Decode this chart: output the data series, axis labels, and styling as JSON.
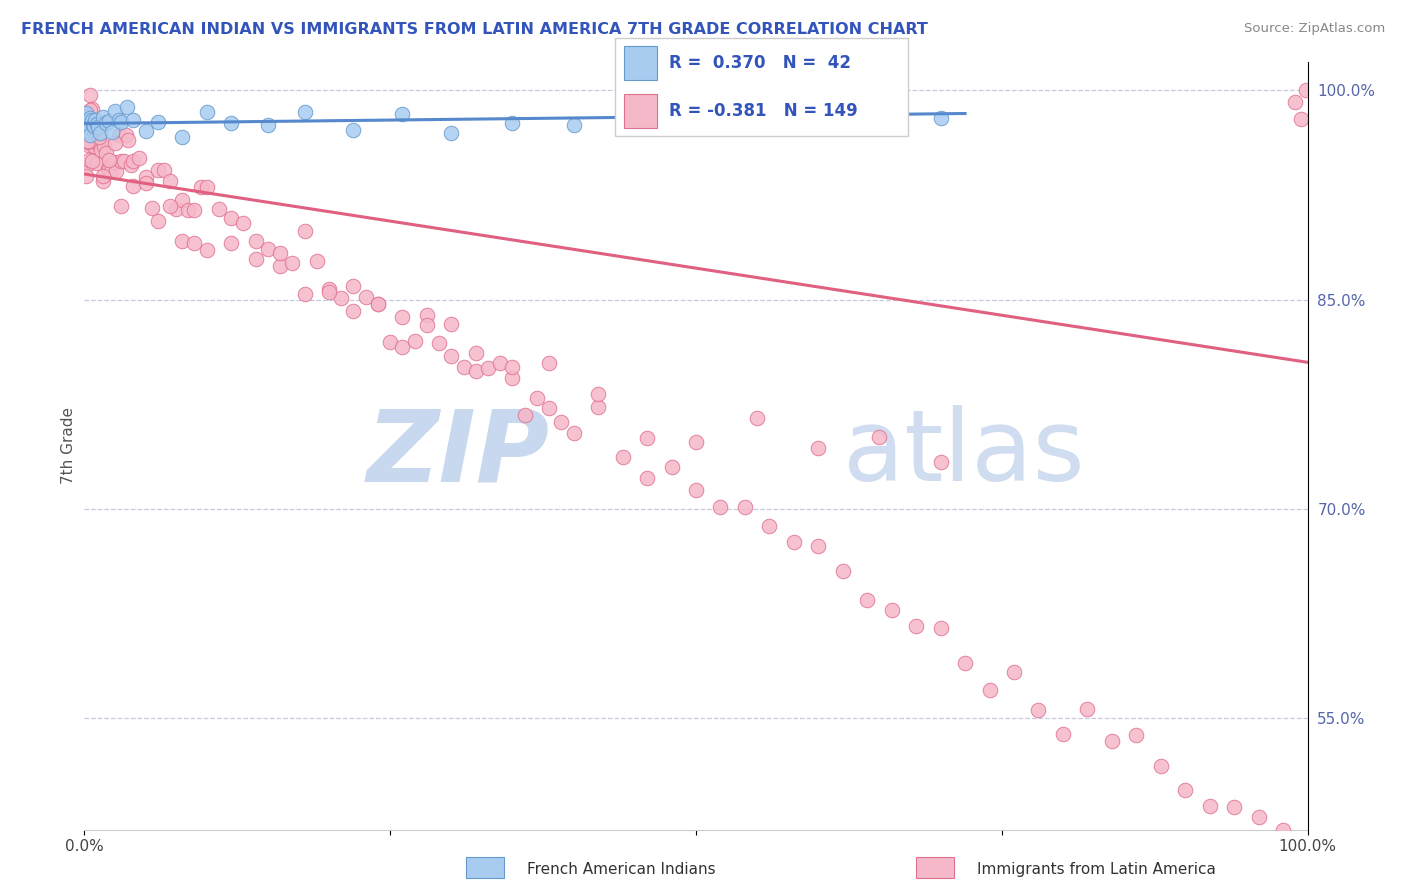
{
  "title": "FRENCH AMERICAN INDIAN VS IMMIGRANTS FROM LATIN AMERICA 7TH GRADE CORRELATION CHART",
  "source": "Source: ZipAtlas.com",
  "ylabel": "7th Grade",
  "right_ytick_values": [
    55.0,
    70.0,
    85.0,
    100.0
  ],
  "legend_blue_label": "French American Indians",
  "legend_pink_label": "Immigrants from Latin America",
  "R_blue": 0.37,
  "N_blue": 42,
  "R_pink": -0.381,
  "N_pink": 149,
  "blue_fill": "#A8CCF0",
  "blue_edge": "#6699CC",
  "pink_fill": "#F5B8C8",
  "pink_edge": "#E07090",
  "blue_line": "#5588CC",
  "pink_line": "#E06080",
  "grid_color": "#BBBBDD",
  "title_color": "#3355BB",
  "axis_label_color": "#5566AA",
  "watermark_zip_color": "#C8D8EE",
  "watermark_atlas_color": "#D0DDF0",
  "ylim_min": 0.47,
  "ylim_max": 1.02,
  "xlim_min": 0.0,
  "xlim_max": 1.0,
  "blue_x": [
    0.001,
    0.002,
    0.002,
    0.003,
    0.003,
    0.004,
    0.004,
    0.005,
    0.005,
    0.006,
    0.007,
    0.008,
    0.009,
    0.01,
    0.011,
    0.013,
    0.015,
    0.018,
    0.02,
    0.023,
    0.025,
    0.028,
    0.03,
    0.035,
    0.04,
    0.05,
    0.06,
    0.08,
    0.1,
    0.12,
    0.15,
    0.18,
    0.22,
    0.26,
    0.3,
    0.35,
    0.4,
    0.46,
    0.5,
    0.52,
    0.55,
    0.7
  ],
  "blue_y": [
    0.975,
    0.978,
    0.974,
    0.977,
    0.975,
    0.976,
    0.974,
    0.977,
    0.975,
    0.976,
    0.978,
    0.975,
    0.976,
    0.977,
    0.975,
    0.977,
    0.978,
    0.976,
    0.977,
    0.978,
    0.977,
    0.978,
    0.979,
    0.978,
    0.979,
    0.978,
    0.979,
    0.978,
    0.979,
    0.979,
    0.979,
    0.979,
    0.98,
    0.98,
    0.98,
    0.98,
    0.981,
    0.98,
    0.981,
    0.98,
    0.981,
    0.981
  ],
  "pink_x": [
    0.002,
    0.003,
    0.003,
    0.004,
    0.004,
    0.005,
    0.005,
    0.006,
    0.006,
    0.007,
    0.007,
    0.008,
    0.008,
    0.009,
    0.01,
    0.011,
    0.012,
    0.013,
    0.014,
    0.015,
    0.016,
    0.017,
    0.018,
    0.019,
    0.02,
    0.022,
    0.024,
    0.026,
    0.028,
    0.03,
    0.032,
    0.034,
    0.036,
    0.038,
    0.04,
    0.045,
    0.05,
    0.055,
    0.06,
    0.065,
    0.07,
    0.075,
    0.08,
    0.085,
    0.09,
    0.095,
    0.1,
    0.11,
    0.12,
    0.13,
    0.14,
    0.15,
    0.16,
    0.17,
    0.18,
    0.19,
    0.2,
    0.21,
    0.22,
    0.23,
    0.24,
    0.25,
    0.26,
    0.27,
    0.28,
    0.29,
    0.3,
    0.31,
    0.32,
    0.33,
    0.34,
    0.35,
    0.36,
    0.37,
    0.38,
    0.39,
    0.4,
    0.42,
    0.44,
    0.46,
    0.48,
    0.5,
    0.52,
    0.54,
    0.56,
    0.58,
    0.6,
    0.62,
    0.64,
    0.66,
    0.68,
    0.7,
    0.72,
    0.74,
    0.76,
    0.78,
    0.8,
    0.82,
    0.84,
    0.86,
    0.88,
    0.9,
    0.92,
    0.94,
    0.96,
    0.98,
    0.99,
    0.995,
    0.999,
    0.001,
    0.002,
    0.003,
    0.004,
    0.005,
    0.006,
    0.008,
    0.01,
    0.012,
    0.015,
    0.02,
    0.025,
    0.03,
    0.04,
    0.05,
    0.06,
    0.07,
    0.08,
    0.09,
    0.1,
    0.12,
    0.14,
    0.16,
    0.18,
    0.2,
    0.22,
    0.24,
    0.26,
    0.28,
    0.3,
    0.32,
    0.35,
    0.38,
    0.42,
    0.46,
    0.5,
    0.55,
    0.6,
    0.65,
    0.7
  ],
  "pink_y": [
    0.975,
    0.97,
    0.968,
    0.972,
    0.966,
    0.97,
    0.965,
    0.968,
    0.964,
    0.969,
    0.963,
    0.966,
    0.962,
    0.967,
    0.965,
    0.962,
    0.963,
    0.96,
    0.962,
    0.958,
    0.961,
    0.957,
    0.96,
    0.955,
    0.958,
    0.955,
    0.952,
    0.956,
    0.95,
    0.953,
    0.948,
    0.951,
    0.946,
    0.949,
    0.945,
    0.943,
    0.94,
    0.937,
    0.935,
    0.932,
    0.93,
    0.926,
    0.924,
    0.921,
    0.918,
    0.915,
    0.912,
    0.907,
    0.902,
    0.897,
    0.892,
    0.887,
    0.882,
    0.877,
    0.872,
    0.867,
    0.862,
    0.857,
    0.852,
    0.847,
    0.842,
    0.837,
    0.832,
    0.827,
    0.822,
    0.817,
    0.812,
    0.807,
    0.802,
    0.797,
    0.792,
    0.787,
    0.782,
    0.777,
    0.772,
    0.767,
    0.762,
    0.752,
    0.742,
    0.732,
    0.722,
    0.712,
    0.702,
    0.692,
    0.682,
    0.672,
    0.662,
    0.652,
    0.642,
    0.632,
    0.622,
    0.612,
    0.602,
    0.592,
    0.582,
    0.572,
    0.562,
    0.552,
    0.542,
    0.532,
    0.522,
    0.512,
    0.502,
    0.492,
    0.482,
    0.472,
    0.995,
    0.998,
    1.0,
    0.96,
    0.965,
    0.955,
    0.96,
    0.965,
    0.968,
    0.962,
    0.96,
    0.955,
    0.95,
    0.945,
    0.94,
    0.935,
    0.926,
    0.92,
    0.915,
    0.91,
    0.905,
    0.9,
    0.895,
    0.888,
    0.88,
    0.872,
    0.865,
    0.857,
    0.848,
    0.84,
    0.832,
    0.824,
    0.815,
    0.807,
    0.798,
    0.79,
    0.781,
    0.773,
    0.764,
    0.756,
    0.747,
    0.738,
    0.73
  ]
}
